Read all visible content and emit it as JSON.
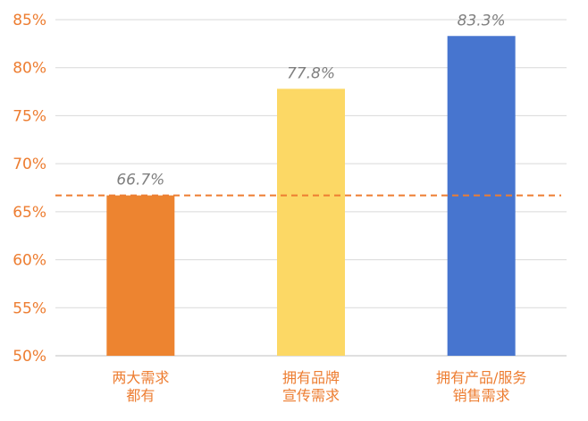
{
  "chart_data": {
    "type": "bar",
    "title": "",
    "xlabel": "",
    "ylabel": "",
    "ylim": [
      50,
      85
    ],
    "ytick_values": [
      50,
      55,
      60,
      65,
      70,
      75,
      80,
      85
    ],
    "ytick_labels": [
      "50%",
      "55%",
      "60%",
      "65%",
      "70%",
      "75%",
      "80%",
      "85%"
    ],
    "categories": [
      [
        "两大需求",
        "都有"
      ],
      [
        "拥有品牌",
        "宣传需求"
      ],
      [
        "拥有产品/服务",
        "销售需求"
      ]
    ],
    "values": [
      66.7,
      77.8,
      83.3
    ],
    "data_labels": [
      "66.7%",
      "77.8%",
      "83.3%"
    ],
    "bar_colors": [
      "#ED8430",
      "#FCD865",
      "#4775CF"
    ],
    "reference_line": {
      "value": 66.7,
      "style": "dashed",
      "color": "#ED7D31"
    },
    "grid": true,
    "colors": {
      "tick_label": "#ED7D31",
      "data_label": "#7F7F7F",
      "category_label": "#ED7D31",
      "gridline": "#D9D9D9",
      "axis": "#BFBFBF"
    }
  }
}
